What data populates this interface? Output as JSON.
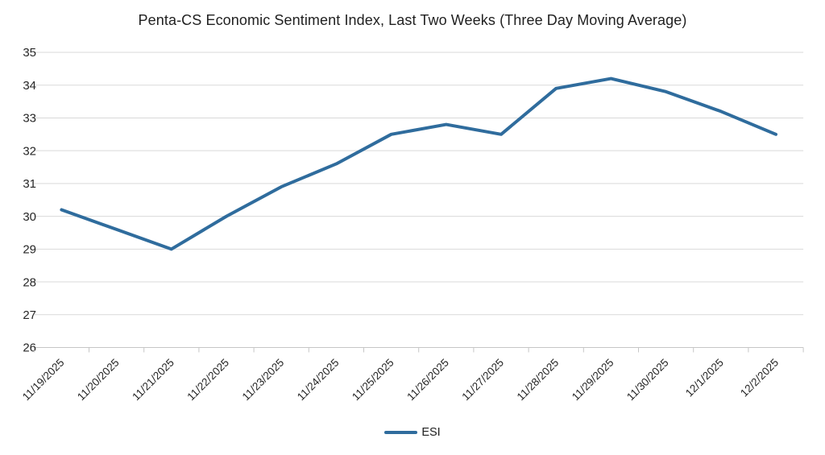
{
  "title": "Penta-CS Economic Sentiment Index, Last Two Weeks (Three Day Moving Average)",
  "legend": {
    "label": "ESI"
  },
  "colors": {
    "line": "#2F6C9D",
    "gridline": "#D9D9D9",
    "axis": "#C6C6C6",
    "tick": "#C6C6C6",
    "title_text": "#212121",
    "label_text": "#262626"
  },
  "chart_data": {
    "type": "line",
    "title": "Penta-CS Economic Sentiment Index, Last Two Weeks (Three Day Moving Average)",
    "categories": [
      "11/19/2025",
      "11/20/2025",
      "11/21/2025",
      "11/22/2025",
      "11/23/2025",
      "11/24/2025",
      "11/25/2025",
      "11/26/2025",
      "11/27/2025",
      "11/28/2025",
      "11/29/2025",
      "11/30/2025",
      "12/1/2025",
      "12/2/2025"
    ],
    "series": [
      {
        "name": "ESI",
        "values": [
          30.2,
          29.6,
          29.0,
          30.0,
          30.9,
          31.6,
          32.5,
          32.8,
          32.5,
          33.9,
          34.2,
          33.8,
          33.2,
          32.5
        ]
      }
    ],
    "xlabel": "",
    "ylabel": "",
    "ylim": [
      26,
      35
    ],
    "ytick_step": 1,
    "grid": true,
    "legend_position": "bottom",
    "x_label_rotation": -45
  }
}
